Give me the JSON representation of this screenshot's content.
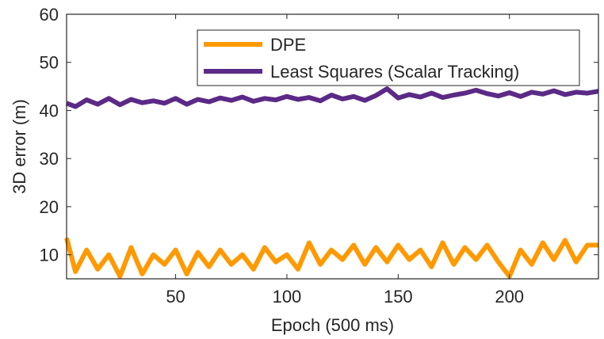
{
  "chart_data": {
    "type": "line",
    "title": "",
    "xlabel": "Epoch (500 ms)",
    "ylabel": "3D error (m)",
    "xlim": [
      1,
      240
    ],
    "ylim": [
      5,
      60
    ],
    "xticks": [
      50,
      100,
      150,
      200
    ],
    "yticks": [
      10,
      20,
      30,
      40,
      50,
      60
    ],
    "grid": false,
    "legend_position": "top-right",
    "series": [
      {
        "name": "DPE",
        "color": "#FF9900",
        "x": [
          1,
          5,
          10,
          15,
          20,
          25,
          30,
          35,
          40,
          45,
          50,
          55,
          60,
          65,
          70,
          75,
          80,
          85,
          90,
          95,
          100,
          105,
          110,
          115,
          120,
          125,
          130,
          135,
          140,
          145,
          150,
          155,
          160,
          165,
          170,
          175,
          180,
          185,
          190,
          195,
          200,
          205,
          210,
          215,
          220,
          225,
          230,
          235,
          240
        ],
        "values": [
          13.5,
          6.5,
          11,
          7,
          10,
          5.5,
          11.5,
          6,
          10,
          8,
          11,
          6,
          10.5,
          7.5,
          11,
          8,
          10,
          7,
          11.5,
          8.5,
          10,
          7,
          12.5,
          8,
          11,
          9,
          12,
          8,
          11.5,
          8.5,
          12,
          9,
          11,
          7.5,
          12.5,
          8,
          11.5,
          9,
          12,
          8.5,
          5.5,
          11,
          8,
          12.5,
          9,
          13,
          8.5,
          12,
          12
        ]
      },
      {
        "name": "Least Squares (Scalar Tracking)",
        "color": "#5B2A86",
        "x": [
          1,
          5,
          10,
          15,
          20,
          25,
          30,
          35,
          40,
          45,
          50,
          55,
          60,
          65,
          70,
          75,
          80,
          85,
          90,
          95,
          100,
          105,
          110,
          115,
          120,
          125,
          130,
          135,
          140,
          145,
          150,
          155,
          160,
          165,
          170,
          175,
          180,
          185,
          190,
          195,
          200,
          205,
          210,
          215,
          220,
          225,
          230,
          235,
          240
        ],
        "values": [
          41.5,
          40.8,
          42.2,
          41.3,
          42.5,
          41.2,
          42.3,
          41.6,
          42,
          41.5,
          42.5,
          41.3,
          42.3,
          41.8,
          42.6,
          42.1,
          42.8,
          41.9,
          42.5,
          42.2,
          42.9,
          42.3,
          42.7,
          42,
          43.2,
          42.4,
          42.9,
          42.1,
          43.1,
          44.5,
          42.6,
          43.3,
          42.8,
          43.6,
          42.7,
          43.2,
          43.6,
          44.2,
          43.5,
          43,
          43.7,
          42.9,
          43.8,
          43.4,
          44.1,
          43.3,
          43.8,
          43.6,
          44
        ]
      }
    ]
  }
}
